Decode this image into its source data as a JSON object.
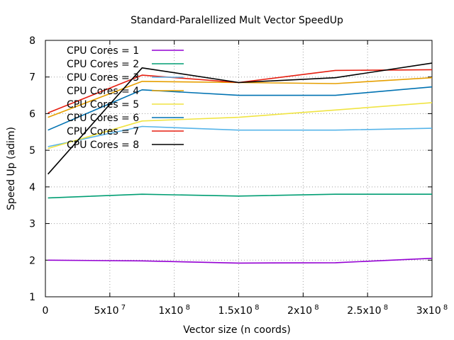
{
  "chart_data": {
    "type": "line",
    "title": "Standard-Paralellized Mult Vector SpeedUp",
    "xlabel": "Vector size (n coords)",
    "ylabel": "Speed Up (adim)",
    "xlim": [
      0,
      300000000
    ],
    "ylim": [
      1,
      8
    ],
    "grid": true,
    "legend_position": "top-left",
    "x_ticks": [
      {
        "value": 0,
        "base": "0",
        "exp": ""
      },
      {
        "value": 50000000,
        "base": "5x10",
        "exp": "7"
      },
      {
        "value": 100000000,
        "base": "1x10",
        "exp": "8"
      },
      {
        "value": 150000000,
        "base": "1.5x10",
        "exp": "8"
      },
      {
        "value": 200000000,
        "base": "2x10",
        "exp": "8"
      },
      {
        "value": 250000000,
        "base": "2.5x10",
        "exp": "8"
      },
      {
        "value": 300000000,
        "base": "3x10",
        "exp": "8"
      }
    ],
    "y_ticks": [
      1,
      2,
      3,
      4,
      5,
      6,
      7,
      8
    ],
    "x": [
      2000000,
      75000000,
      150000000,
      225000000,
      300000000
    ],
    "series": [
      {
        "name": "CPU Cores = 1",
        "color": "#9400d3",
        "values": [
          2.0,
          1.98,
          1.92,
          1.93,
          2.05
        ]
      },
      {
        "name": "CPU Cores = 2",
        "color": "#009e73",
        "values": [
          3.7,
          3.8,
          3.75,
          3.8,
          3.8
        ]
      },
      {
        "name": "CPU Cores = 3",
        "color": "#56b4e9",
        "values": [
          5.1,
          5.65,
          5.55,
          5.55,
          5.6
        ]
      },
      {
        "name": "CPU Cores = 4",
        "color": "#e69f00",
        "values": [
          5.9,
          6.88,
          6.85,
          6.82,
          6.98
        ]
      },
      {
        "name": "CPU Cores = 5",
        "color": "#f0e442",
        "values": [
          5.05,
          5.8,
          5.9,
          6.1,
          6.3
        ]
      },
      {
        "name": "CPU Cores = 6",
        "color": "#0072b2",
        "values": [
          5.55,
          6.65,
          6.5,
          6.5,
          6.73
        ]
      },
      {
        "name": "CPU Cores = 7",
        "color": "#e51e10",
        "values": [
          6.02,
          7.05,
          6.85,
          7.18,
          7.2
        ]
      },
      {
        "name": "CPU Cores = 8",
        "color": "#000000",
        "values": [
          4.35,
          7.25,
          6.85,
          6.98,
          7.38
        ]
      }
    ]
  }
}
